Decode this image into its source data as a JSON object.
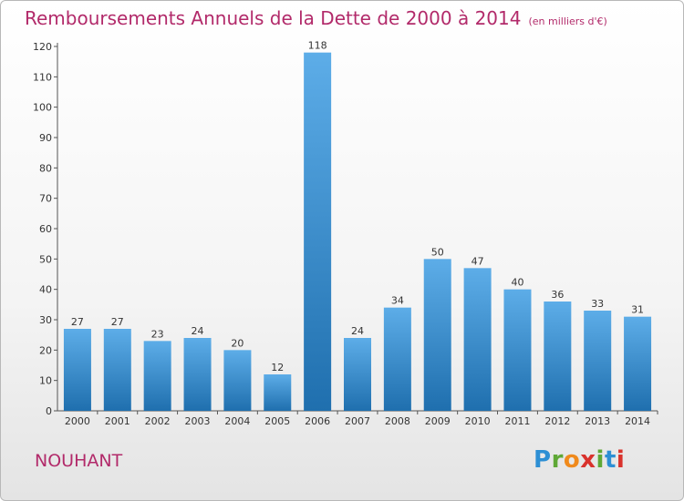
{
  "header": {
    "title": "Remboursements Annuels de la Dette de 2000 à 2014",
    "subtitle": "(en milliers d'€)"
  },
  "footer": {
    "town": "NOUHANT",
    "logo": [
      "P",
      "r",
      "o",
      "x",
      "i",
      "t",
      "i"
    ]
  },
  "colors": {
    "accent": "#b22a6a",
    "bar_top": "#5dade8",
    "bar_bottom": "#1f6fae",
    "logo": [
      "#2d8fd4",
      "#5fa836",
      "#f08a1c",
      "#d9322c",
      "#5fa836",
      "#2d8fd4",
      "#d9322c"
    ]
  },
  "chart_data": {
    "type": "bar",
    "title": "Remboursements Annuels de la Dette de 2000 à 2014",
    "subtitle": "(en milliers d'€)",
    "categories": [
      "2000",
      "2001",
      "2002",
      "2003",
      "2004",
      "2005",
      "2006",
      "2007",
      "2008",
      "2009",
      "2010",
      "2011",
      "2012",
      "2013",
      "2014"
    ],
    "values": [
      27,
      27,
      23,
      24,
      20,
      12,
      118,
      24,
      34,
      50,
      47,
      40,
      36,
      33,
      31
    ],
    "ylim": [
      0,
      120
    ],
    "yticks": [
      0,
      10,
      20,
      30,
      40,
      50,
      60,
      70,
      80,
      90,
      100,
      110,
      120
    ],
    "xlabel": "",
    "ylabel": "",
    "grid": false,
    "data_labels": true
  }
}
